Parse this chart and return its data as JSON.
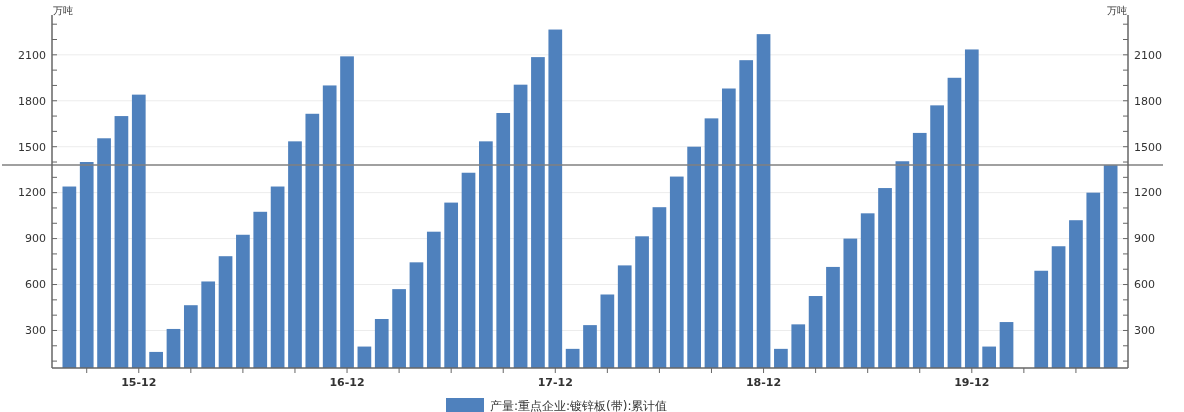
{
  "chart_data": {
    "type": "bar",
    "categories": [
      null,
      null,
      null,
      null,
      "15-12",
      null,
      null,
      null,
      null,
      null,
      null,
      null,
      null,
      null,
      null,
      null,
      "16-12",
      null,
      null,
      null,
      null,
      null,
      null,
      null,
      null,
      null,
      null,
      null,
      "17-12",
      null,
      null,
      null,
      null,
      null,
      null,
      null,
      null,
      null,
      null,
      null,
      "18-12",
      null,
      null,
      null,
      null,
      null,
      null,
      null,
      null,
      null,
      null,
      null,
      "19-12",
      null,
      null,
      null,
      null,
      null,
      null,
      null,
      null
    ],
    "series": [
      {
        "name": "产量:重点企业:镀锌板(带):累计值",
        "color": "#4f81bd",
        "values": [
          1240,
          1400,
          1555,
          1700,
          1840,
          160,
          310,
          465,
          620,
          785,
          925,
          1075,
          1240,
          1535,
          1715,
          1900,
          2090,
          195,
          375,
          570,
          745,
          945,
          1135,
          1330,
          1535,
          1720,
          1905,
          2085,
          2265,
          180,
          335,
          535,
          725,
          915,
          1105,
          1305,
          1500,
          1685,
          1880,
          2065,
          2235,
          180,
          340,
          525,
          715,
          900,
          1065,
          1230,
          1405,
          1590,
          1770,
          1950,
          2135,
          195,
          355,
          null,
          690,
          850,
          1020,
          1200,
          1380
        ]
      }
    ],
    "ylabel": "万吨",
    "y2label": "万吨",
    "ylim": [
      55,
      2360
    ],
    "yticks": [
      300,
      600,
      900,
      1200,
      1500,
      1800,
      2100
    ],
    "y2lim": [
      55,
      2360
    ],
    "y2ticks": [
      300,
      600,
      900,
      1200,
      1500,
      1800,
      2100
    ],
    "ref_lines": [
      {
        "axis": "y",
        "value": 1380,
        "color": "#808080"
      }
    ],
    "grid": "y",
    "legend": "bottom"
  }
}
